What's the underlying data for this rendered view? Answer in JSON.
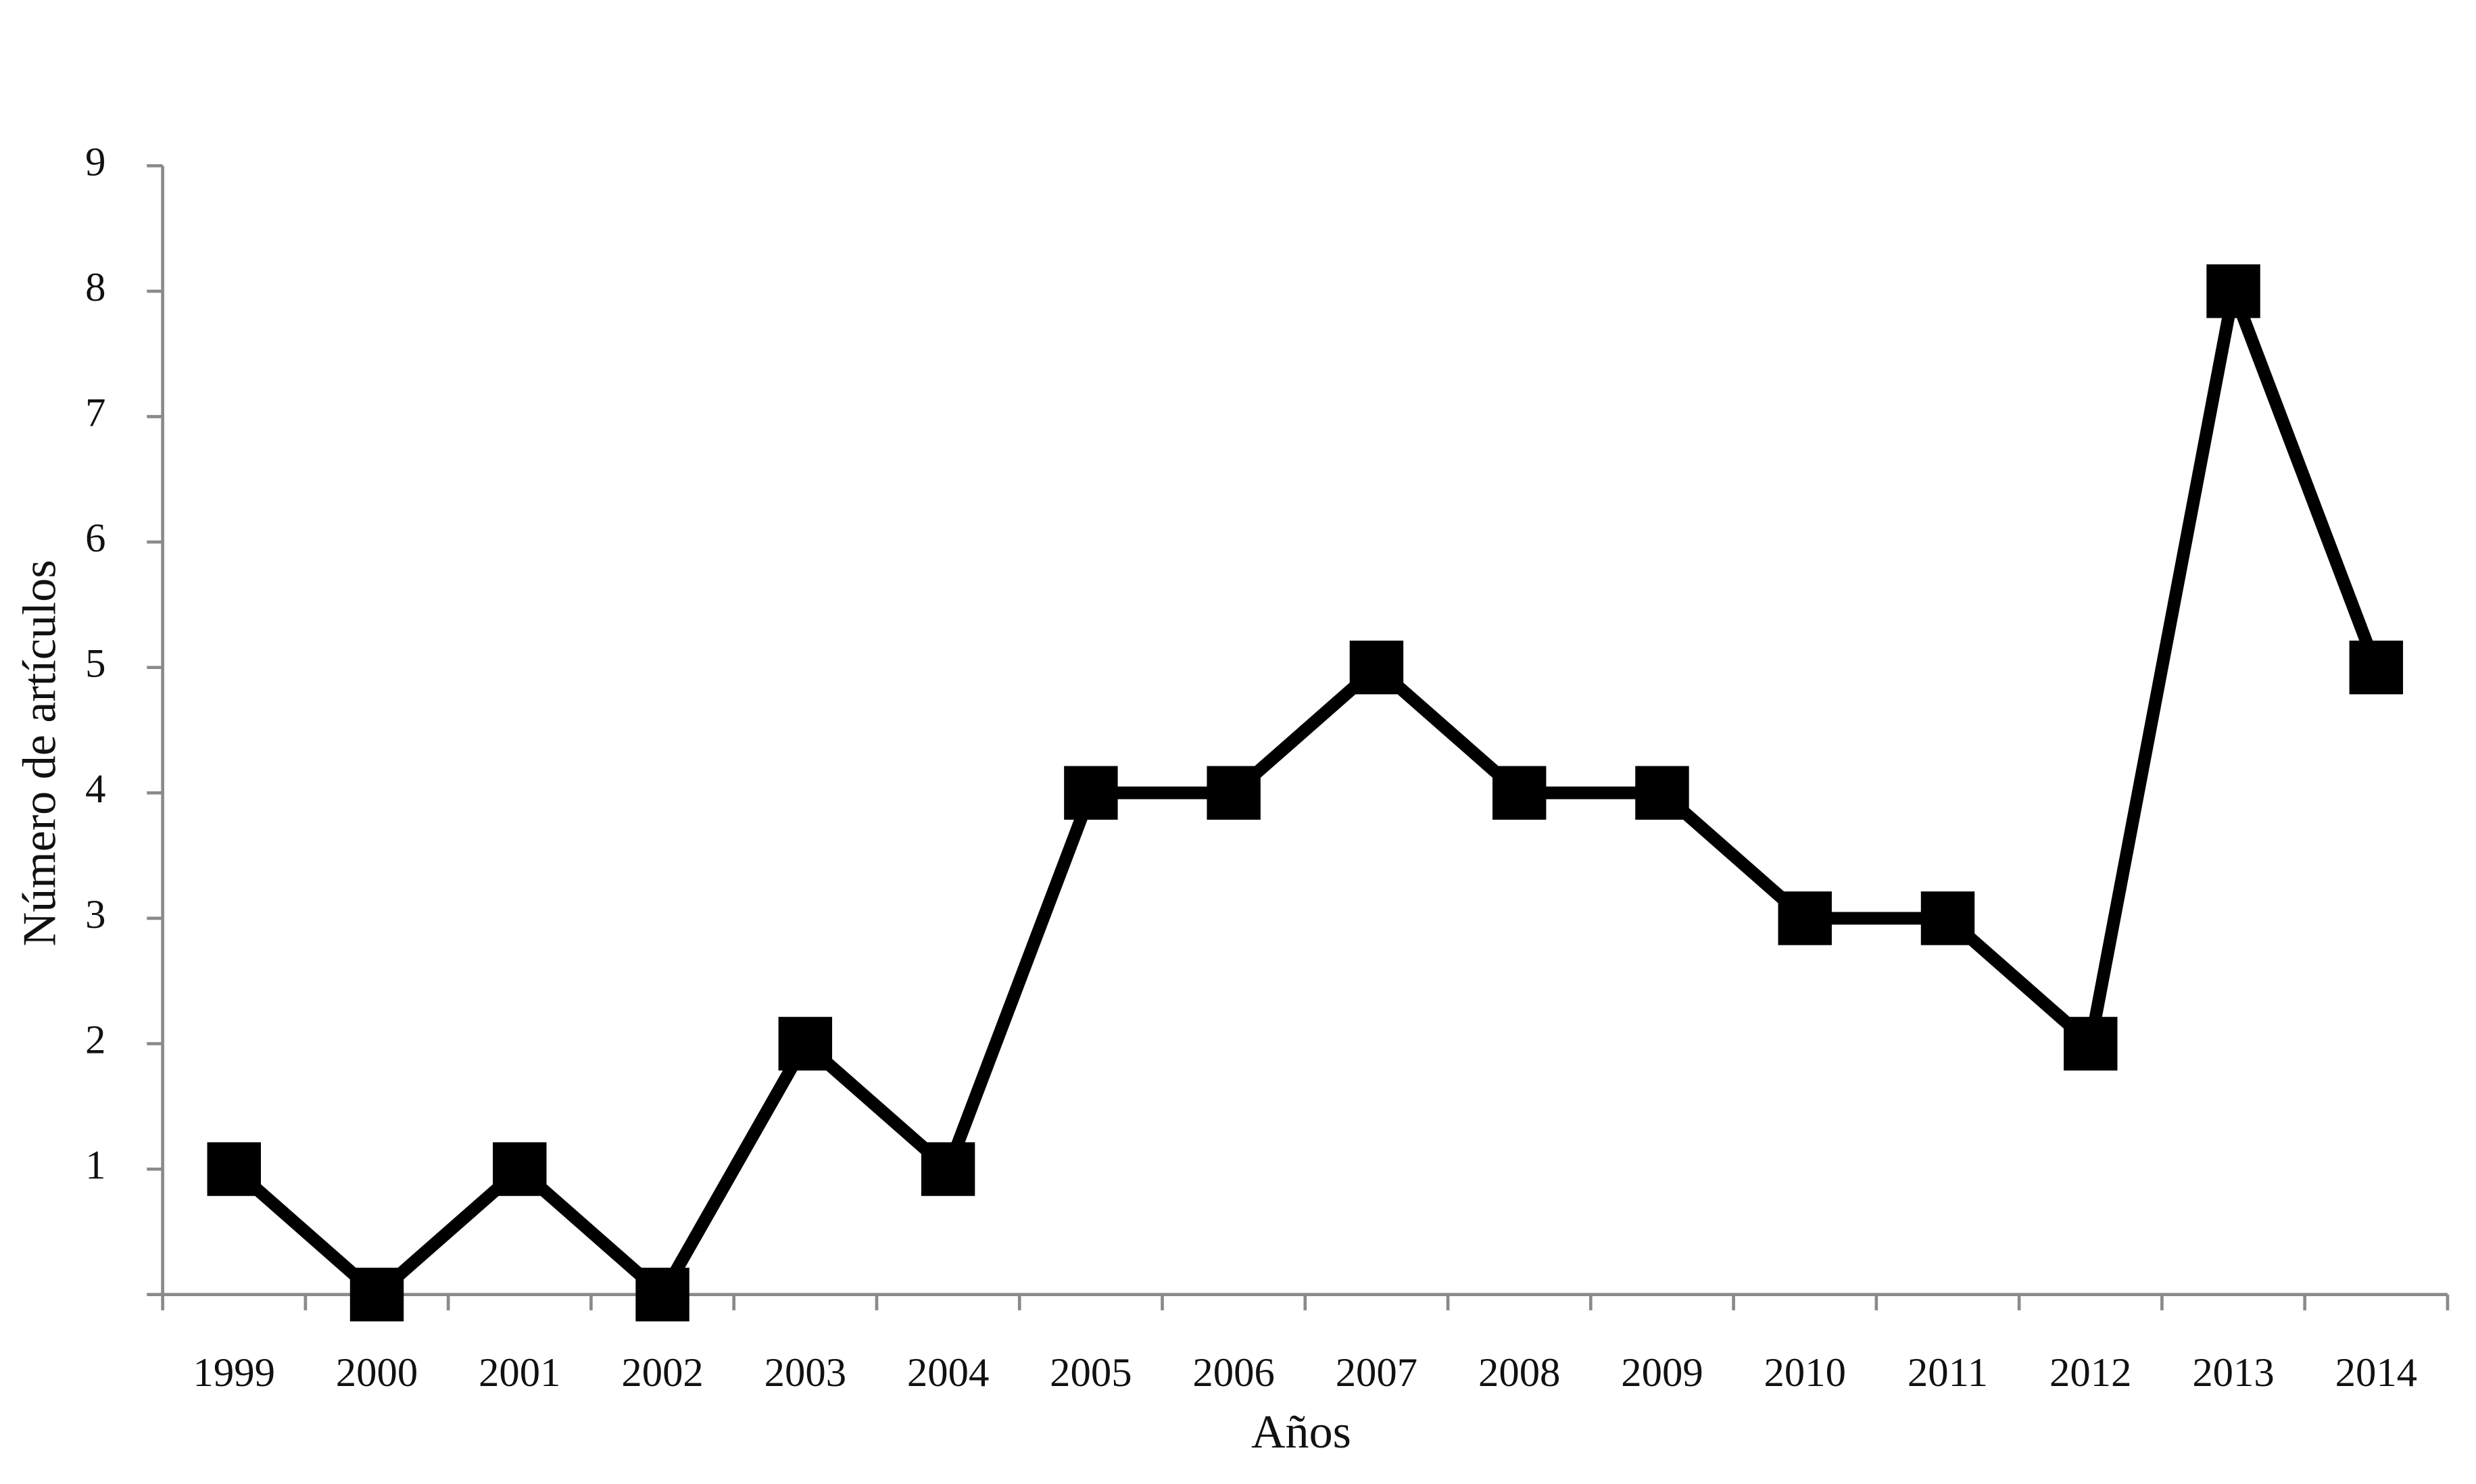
{
  "chart_data": {
    "type": "line",
    "x_label": "Años",
    "y_label": "Número de artículos",
    "categories": [
      "1999",
      "2000",
      "2001",
      "2002",
      "2003",
      "2004",
      "2005",
      "2006",
      "2007",
      "2008",
      "2009",
      "2010",
      "2011",
      "2012",
      "2013",
      "2014"
    ],
    "values": [
      1,
      0,
      1,
      0,
      2,
      1,
      4,
      4,
      5,
      4,
      4,
      3,
      3,
      2,
      8,
      5
    ],
    "color": "#000000",
    "ylim": [
      0,
      9
    ],
    "yticks": [
      1,
      2,
      3,
      4,
      5,
      6,
      7,
      8,
      9
    ],
    "grid": false
  }
}
